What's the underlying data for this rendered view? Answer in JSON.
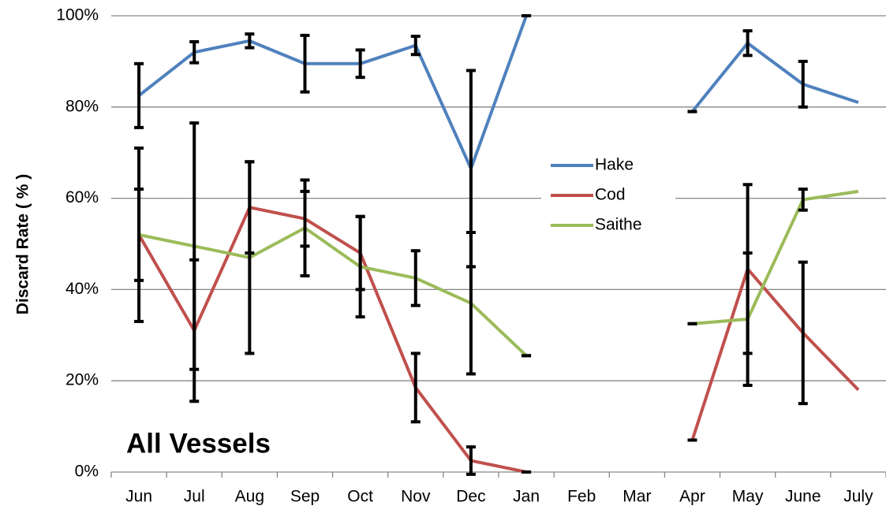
{
  "chart_data": {
    "type": "line",
    "y_label": "Discard Rate ( % )",
    "annotation": "All Vessels",
    "categories": [
      "Jun",
      "Jul",
      "Aug",
      "Sep",
      "Oct",
      "Nov",
      "Dec",
      "Jan",
      "Feb",
      "Mar",
      "Apr",
      "May",
      "June",
      "July"
    ],
    "series": [
      {
        "name": "Hake",
        "color": "#4f81bd",
        "values": [
          82.5,
          92,
          94.5,
          89.5,
          89.5,
          93.5,
          66.5,
          100,
          null,
          null,
          79,
          94,
          85,
          81
        ],
        "errors": [
          7,
          2.3,
          1.5,
          6.2,
          3,
          2,
          21.5,
          0,
          null,
          null,
          0,
          2.7,
          5,
          null
        ]
      },
      {
        "name": "Cod",
        "color": "#c0504d",
        "values": [
          52,
          31,
          58,
          55.5,
          48,
          18.5,
          2.5,
          0,
          null,
          null,
          7,
          44.5,
          30.5,
          18
        ],
        "errors": [
          19,
          15.5,
          10,
          6,
          8,
          7.5,
          3,
          0,
          null,
          null,
          0,
          18.5,
          15.5,
          null
        ]
      },
      {
        "name": "Saithe",
        "color": "#9bbb59",
        "values": [
          52,
          49.5,
          47,
          53.5,
          45,
          42.5,
          37,
          25.5,
          null,
          null,
          32.5,
          33.5,
          59.7,
          61.5
        ],
        "errors": [
          10,
          27,
          21,
          10.5,
          11,
          6,
          15.5,
          0,
          null,
          null,
          0,
          14.5,
          2.3,
          null
        ]
      }
    ],
    "ylim": [
      0,
      100
    ],
    "yticks": [
      {
        "value": 0,
        "label": "0%"
      },
      {
        "value": 20,
        "label": "20%"
      },
      {
        "value": 40,
        "label": "40%"
      },
      {
        "value": 60,
        "label": "60%"
      },
      {
        "value": 80,
        "label": "80%"
      },
      {
        "value": 100,
        "label": "100%"
      }
    ],
    "grid": true,
    "legend": "center right"
  }
}
